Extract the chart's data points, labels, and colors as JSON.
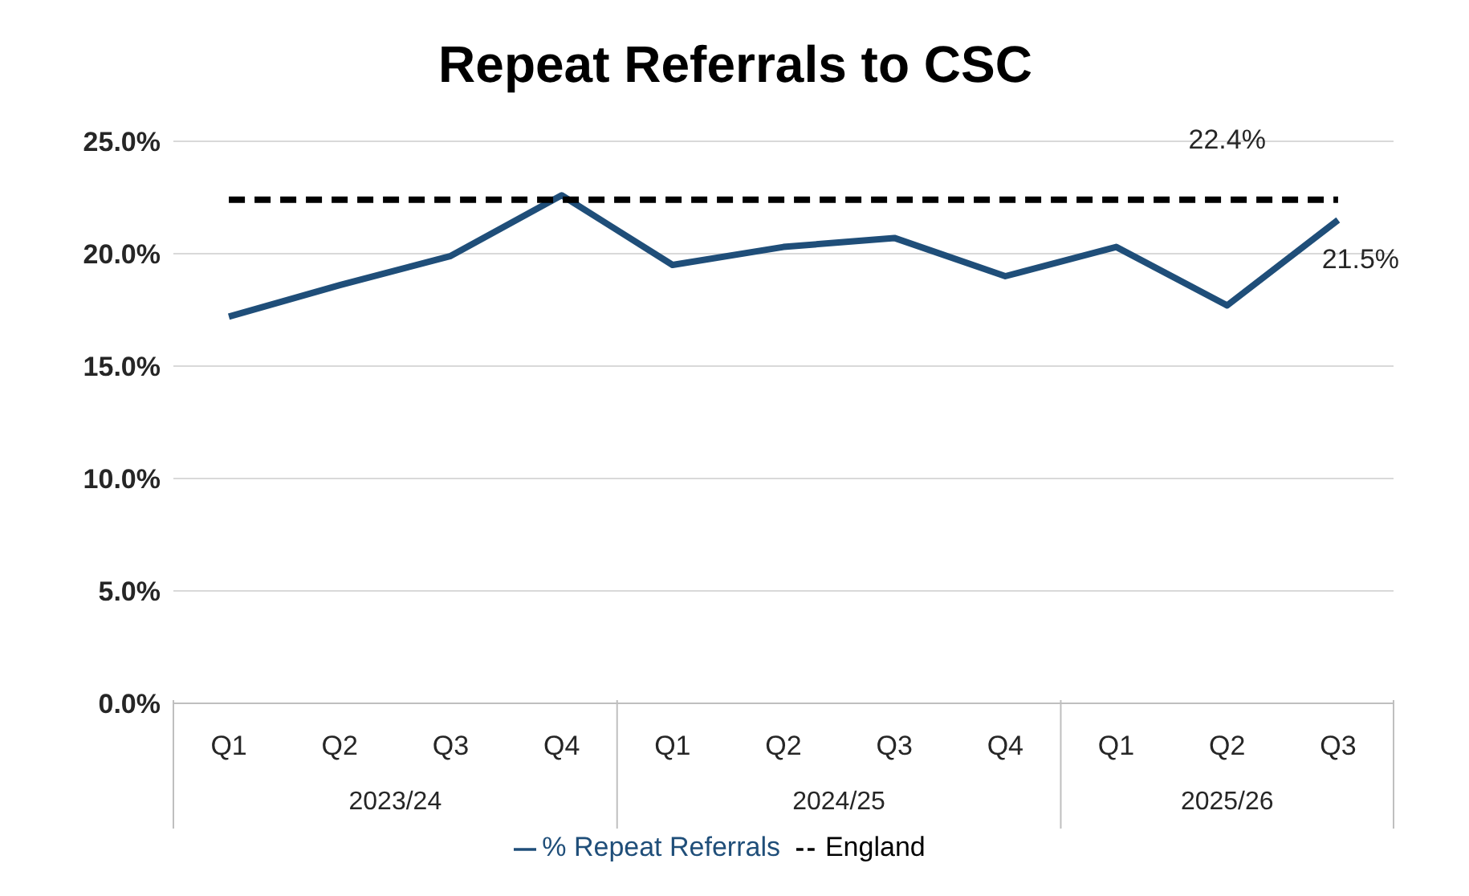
{
  "chart_data": {
    "type": "line",
    "title": "Repeat Referrals to CSC",
    "categories": [
      "Q1",
      "Q2",
      "Q3",
      "Q4",
      "Q1",
      "Q2",
      "Q3",
      "Q4",
      "Q1",
      "Q2",
      "Q3"
    ],
    "annotations": [
      "2023/24",
      "2024/25",
      "2025/26"
    ],
    "series": [
      {
        "name": "% Repeat Referrals",
        "color": "#1f4e79",
        "values": [
          17.2,
          18.6,
          19.9,
          22.6,
          19.5,
          20.3,
          20.7,
          19.0,
          20.3,
          17.7,
          21.5
        ],
        "value_labels": [
          null,
          null,
          null,
          null,
          null,
          null,
          null,
          null,
          null,
          null,
          "21.5%"
        ],
        "line_style": "solid"
      },
      {
        "name": "England",
        "color": "#000000",
        "values": [
          22.4,
          22.4,
          22.4,
          22.4,
          22.4,
          22.4,
          22.4,
          22.4,
          22.4,
          22.4,
          22.4
        ],
        "value_labels": [
          null,
          null,
          null,
          null,
          null,
          null,
          null,
          null,
          null,
          "22.4%",
          null
        ],
        "line_style": "dashed"
      }
    ],
    "ylim": [
      0,
      25
    ],
    "yticks": [
      {
        "value": 0,
        "label": "0.0%"
      },
      {
        "value": 5,
        "label": "5.0%"
      },
      {
        "value": 10,
        "label": "10.0%"
      },
      {
        "value": 15,
        "label": "15.0%"
      },
      {
        "value": 20,
        "label": "20.0%"
      },
      {
        "value": 25,
        "label": "25.0%"
      }
    ],
    "grid": "y",
    "legend": "bottom",
    "marker": "none"
  }
}
